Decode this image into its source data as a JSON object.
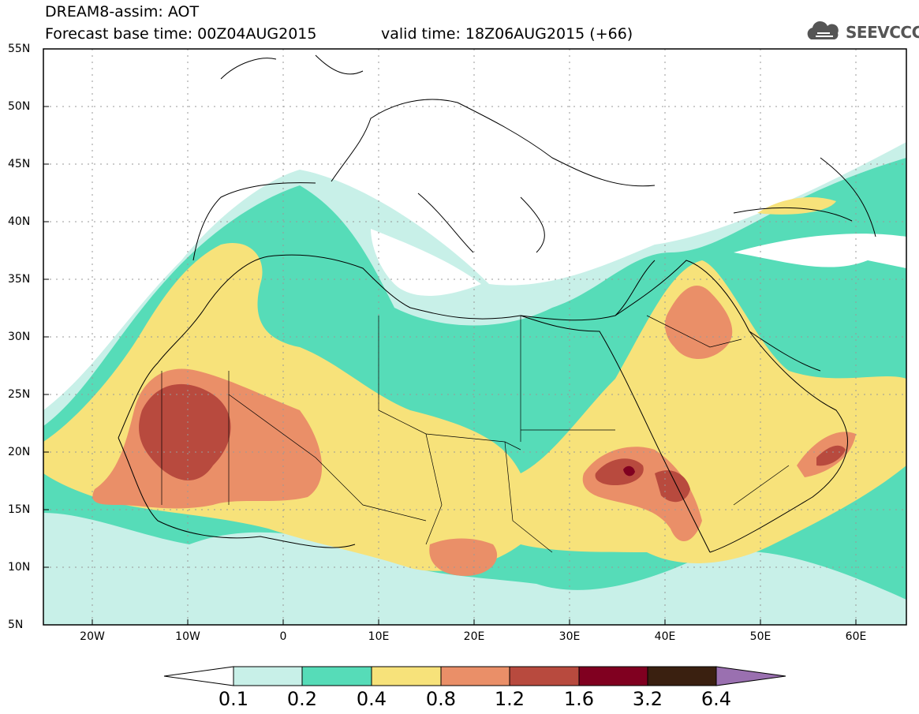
{
  "header": {
    "line1": "DREAM8-assim: AOT",
    "line2_left": "Forecast base time: 00Z04AUG2015",
    "line2_right": "valid time: 18Z06AUG2015 (+66)",
    "logo_text": "SEEVCCC",
    "logo_icon": "cloud-icon"
  },
  "axes": {
    "lat_labels": [
      "55N",
      "50N",
      "45N",
      "40N",
      "35N",
      "30N",
      "25N",
      "20N",
      "15N",
      "10N",
      "5N"
    ],
    "lon_labels": [
      "20W",
      "10W",
      "0",
      "10E",
      "20E",
      "30E",
      "40E",
      "50E",
      "60E"
    ]
  },
  "colorbar": {
    "labels": [
      "0.1",
      "0.2",
      "0.4",
      "0.8",
      "1.2",
      "1.6",
      "3.2",
      "6.4"
    ],
    "colors": [
      "#ffffff",
      "#c8f0e8",
      "#56dcb8",
      "#f7e27a",
      "#ea8f68",
      "#b84a3e",
      "#800020",
      "#3a2010",
      "#9a70b0"
    ]
  },
  "palette": {
    "c1": "#c8f0e8",
    "c2": "#56dcb8",
    "c3": "#f7e27a",
    "c4": "#ea8f68",
    "c5": "#b84a3e",
    "c6": "#800020"
  }
}
